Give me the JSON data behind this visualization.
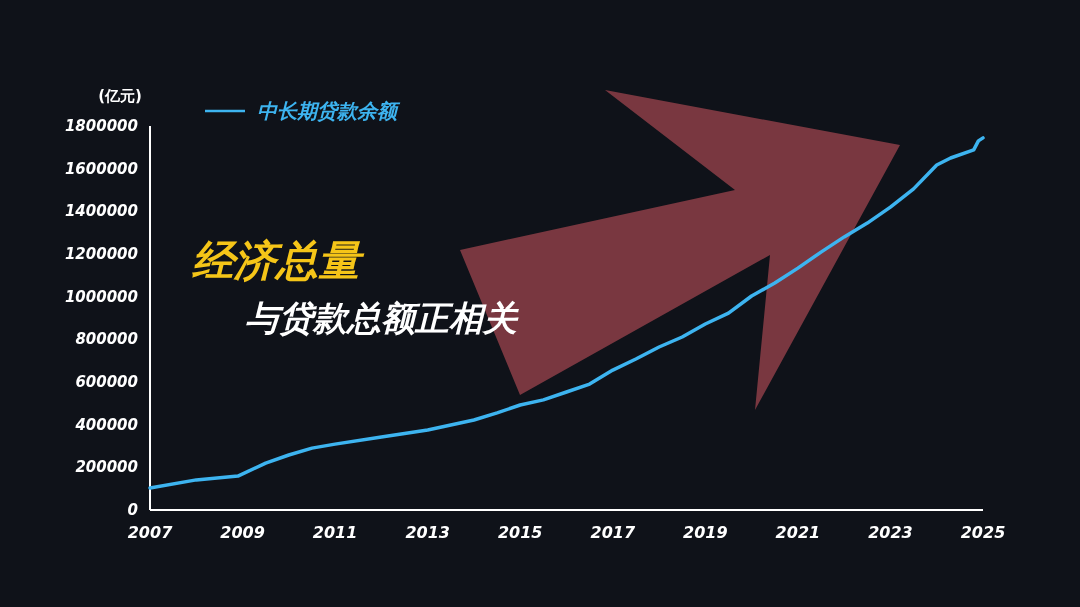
{
  "chart_data": {
    "type": "line",
    "ylabel": "(亿元)",
    "annotations": [
      "经济总量",
      "与贷款总额正相关"
    ],
    "xlim": [
      2007,
      2025
    ],
    "xticks": [
      2007,
      2009,
      2011,
      2013,
      2015,
      2017,
      2019,
      2021,
      2023,
      2025
    ],
    "ylim": [
      0,
      1800000
    ],
    "yticks": [
      0,
      200000,
      400000,
      600000,
      800000,
      1000000,
      1200000,
      1400000,
      1600000,
      1800000
    ],
    "grid": false,
    "legend": "top left",
    "series": [
      {
        "name": "中长期贷款余额",
        "color": "#3db4f0",
        "x": [
          2007,
          2008,
          2008.9,
          2009.5,
          2010,
          2010.5,
          2011,
          2012,
          2013,
          2014,
          2014.5,
          2015,
          2015.5,
          2016,
          2016.5,
          2017,
          2017.5,
          2018,
          2018.5,
          2019,
          2019.5,
          2020,
          2020.5,
          2021,
          2021.5,
          2022,
          2022.5,
          2023,
          2023.5,
          2024,
          2024.3,
          2024.8,
          2024.9,
          2025
        ],
        "values": [
          103000,
          141000,
          159000,
          220000,
          258000,
          290000,
          309000,
          342000,
          375000,
          422000,
          455000,
          492000,
          516000,
          553000,
          590000,
          656000,
          708000,
          764000,
          811000,
          872000,
          923000,
          1003000,
          1064000,
          1134000,
          1209000,
          1280000,
          1345000,
          1420000,
          1505000,
          1617000,
          1650000,
          1688000,
          1730000,
          1744000
        ]
      }
    ]
  }
}
